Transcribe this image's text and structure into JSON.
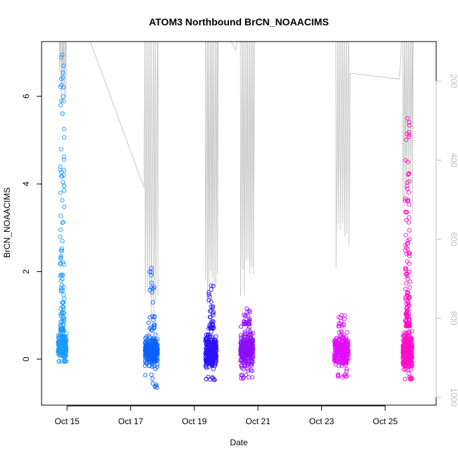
{
  "chart_data": {
    "type": "scatter",
    "title": "ATOM3 Northbound BrCN_NOAACIMS",
    "xlabel": "Date",
    "ylabel": "BrCN_NOAACIMS",
    "x_unit": "days (October)",
    "xlim": [
      14.2,
      26.6
    ],
    "ylim": [
      -1.05,
      7.25
    ],
    "x_ticks": [
      {
        "value": 15,
        "label": "Oct 15"
      },
      {
        "value": 17,
        "label": "Oct 17"
      },
      {
        "value": 19,
        "label": "Oct 19"
      },
      {
        "value": 21,
        "label": "Oct 21"
      },
      {
        "value": 23,
        "label": "Oct 23"
      },
      {
        "value": 25,
        "label": "Oct 25"
      }
    ],
    "y_ticks": [
      0,
      2,
      4,
      6
    ],
    "right_axis": {
      "reversed": true,
      "lim": [
        100,
        1020
      ],
      "ticks": [
        200,
        400,
        600,
        800,
        1000
      ],
      "color": "#bdbdbd"
    },
    "grid": false,
    "marker": "open-circle",
    "series": [
      {
        "color": "#1e9bff",
        "x_range": [
          14.72,
          14.98
        ],
        "y_core": [
          -0.05,
          0.65
        ],
        "y_max": 6.95,
        "y_min": -0.05,
        "tail_count": 110
      },
      {
        "color": "#0a62ff",
        "x_range": [
          17.45,
          17.85
        ],
        "y_core": [
          -0.3,
          0.65
        ],
        "y_max": 2.08,
        "y_min": -0.78,
        "tail_count": 25
      },
      {
        "color": "#2a12ff",
        "x_range": [
          19.35,
          19.7
        ],
        "y_core": [
          -0.4,
          0.7
        ],
        "y_max": 1.68,
        "y_min": -0.48,
        "tail_count": 35
      },
      {
        "color": "#8e0dff",
        "x_range": [
          20.45,
          20.85
        ],
        "y_core": [
          -0.35,
          0.8
        ],
        "y_max": 1.15,
        "y_min": -0.45,
        "tail_count": 25
      },
      {
        "color": "#e10cff",
        "x_range": [
          23.4,
          23.85
        ],
        "y_core": [
          -0.35,
          0.75
        ],
        "y_max": 1.0,
        "y_min": -0.42,
        "tail_count": 12
      },
      {
        "color": "#ff0dcb",
        "x_range": [
          25.55,
          25.85
        ],
        "y_core": [
          -0.4,
          0.75
        ],
        "y_max": 5.5,
        "y_min": -0.48,
        "tail_count": 130
      }
    ],
    "pressure_trace_color": "#c8c8c8"
  }
}
